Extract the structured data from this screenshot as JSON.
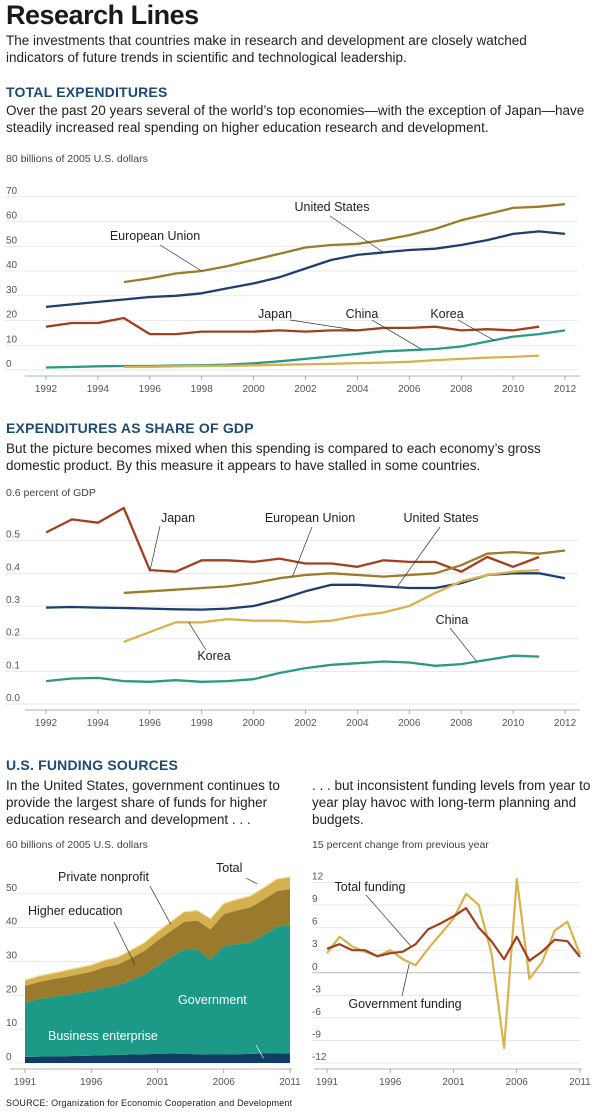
{
  "page": {
    "title": "Research Lines",
    "intro": "The investments that countries make in research and development are closely watched indicators of future trends in scientific and technological leadership.",
    "source": "SOURCE: Organization for Economic Cooperation and Development"
  },
  "sections": {
    "total": {
      "head": "TOTAL EXPENDITURES",
      "text": "Over the past 20 years several of the world’s top economies—with the exception of Japan—have steadily increased real spending on higher education research and development.",
      "unit": "80 billions of 2005 U.S. dollars"
    },
    "gdp": {
      "head": "EXPENDITURES AS SHARE OF GDP",
      "text": "But the picture becomes mixed when this spending is compared to each economy’s gross domestic product. By this measure it appears to have stalled in some countries.",
      "unit": "0.6 percent of GDP"
    },
    "us": {
      "head": "U.S. FUNDING SOURCES",
      "text_left": "In the United States, government continues to provide the largest share of funds for higher education research and development . . .",
      "text_right": ". . . but inconsistent funding levels from year to year play havoc with long-term planning and budgets.",
      "unit_left": "60 billions of 2005 U.S. dollars",
      "unit_right": "15 percent change from previous year"
    }
  },
  "colors": {
    "us": "#1d3f6e",
    "eu": "#9c7b2a",
    "japan": "#a0401e",
    "china": "#2a9a86",
    "korea": "#d9b24e",
    "gov": "#1c9a87",
    "business": "#123c63",
    "highered": "#9a7a2c",
    "nonprofit": "#d4b14e",
    "total_funding": "#a0401e",
    "gov_funding": "#d9b24e"
  },
  "chart_data": [
    {
      "id": "total",
      "type": "line",
      "title": "TOTAL EXPENDITURES",
      "ylabel": "billions of 2005 U.S. dollars",
      "xlim": [
        1991.5,
        2012.5
      ],
      "ylim": [
        0,
        80
      ],
      "yticks": [
        0,
        10,
        20,
        30,
        40,
        50,
        60,
        70
      ],
      "xticks": [
        1992,
        1994,
        1996,
        1998,
        2000,
        2002,
        2004,
        2006,
        2008,
        2010,
        2012
      ],
      "series": [
        {
          "name": "United States",
          "key": "us",
          "x": [
            1992,
            1993,
            1994,
            1995,
            1996,
            1997,
            1998,
            1999,
            2000,
            2001,
            2002,
            2003,
            2004,
            2005,
            2006,
            2007,
            2008,
            2009,
            2010,
            2011,
            2012
          ],
          "values": [
            25.5,
            26.5,
            27.5,
            28.5,
            29.5,
            30,
            31,
            33,
            35,
            37.5,
            41,
            44.5,
            46.5,
            47.5,
            48.5,
            49,
            50.5,
            52.5,
            55,
            56,
            55
          ]
        },
        {
          "name": "European Union",
          "key": "eu",
          "x": [
            1995,
            1996,
            1997,
            1998,
            1999,
            2000,
            2001,
            2002,
            2003,
            2004,
            2005,
            2006,
            2007,
            2008,
            2009,
            2010,
            2011,
            2012
          ],
          "values": [
            35.5,
            37,
            39,
            40,
            42,
            44.5,
            47,
            49.5,
            50.5,
            51,
            52.5,
            54.5,
            57,
            60.5,
            63,
            65.5,
            66,
            67
          ]
        },
        {
          "name": "Japan",
          "key": "japan",
          "x": [
            1992,
            1993,
            1994,
            1995,
            1996,
            1997,
            1998,
            1999,
            2000,
            2001,
            2002,
            2003,
            2004,
            2005,
            2006,
            2007,
            2008,
            2009,
            2010,
            2011
          ],
          "values": [
            17.5,
            19,
            19,
            21,
            14.5,
            14.5,
            15.5,
            15.5,
            15.5,
            16,
            15.5,
            16,
            16,
            17,
            17,
            17.5,
            16,
            16.5,
            16,
            17.5
          ]
        },
        {
          "name": "China",
          "key": "china",
          "x": [
            1992,
            1993,
            1994,
            1995,
            1996,
            1997,
            1998,
            1999,
            2000,
            2001,
            2002,
            2003,
            2004,
            2005,
            2006,
            2007,
            2008,
            2009,
            2010,
            2011,
            2012
          ],
          "values": [
            1,
            1.2,
            1.5,
            1.6,
            1.6,
            1.8,
            1.9,
            2.2,
            2.7,
            3.5,
            4.5,
            5.5,
            6.5,
            7.5,
            8,
            8.5,
            9.5,
            11.5,
            13.5,
            14.5,
            16
          ]
        },
        {
          "name": "Korea",
          "key": "korea",
          "x": [
            1995,
            1996,
            1997,
            1998,
            1999,
            2000,
            2001,
            2002,
            2003,
            2004,
            2005,
            2006,
            2007,
            2008,
            2009,
            2010,
            2011
          ],
          "values": [
            1.2,
            1.3,
            1.5,
            1.6,
            1.7,
            1.9,
            2.1,
            2.3,
            2.5,
            2.8,
            3,
            3.3,
            4,
            4.5,
            5,
            5.3,
            5.8
          ]
        }
      ],
      "annotations": [
        {
          "text": "United States",
          "x": 2005,
          "y": 58
        },
        {
          "text": "European Union",
          "x": 1997,
          "y": 49
        },
        {
          "text": "Japan",
          "x": 2003,
          "y": 20
        },
        {
          "text": "China",
          "x": 2006,
          "y": 20
        },
        {
          "text": "Korea",
          "x": 2009,
          "y": 20
        }
      ]
    },
    {
      "id": "gdp",
      "type": "line",
      "title": "EXPENDITURES AS SHARE OF GDP",
      "ylabel": "percent of GDP",
      "xlim": [
        1991.5,
        2012.5
      ],
      "ylim": [
        0,
        0.6
      ],
      "yticks": [
        0,
        0.1,
        0.2,
        0.3,
        0.4,
        0.5
      ],
      "xticks": [
        1992,
        1994,
        1996,
        1998,
        2000,
        2002,
        2004,
        2006,
        2008,
        2010,
        2012
      ],
      "series": [
        {
          "name": "Japan",
          "key": "japan",
          "x": [
            1992,
            1993,
            1994,
            1995,
            1996,
            1997,
            1998,
            1999,
            2000,
            2001,
            2002,
            2003,
            2004,
            2005,
            2006,
            2007,
            2008,
            2009,
            2010,
            2011
          ],
          "values": [
            0.525,
            0.565,
            0.555,
            0.6,
            0.41,
            0.405,
            0.44,
            0.44,
            0.435,
            0.445,
            0.43,
            0.43,
            0.42,
            0.44,
            0.435,
            0.435,
            0.405,
            0.45,
            0.42,
            0.45
          ]
        },
        {
          "name": "European Union",
          "key": "eu",
          "x": [
            1995,
            1996,
            1997,
            1998,
            1999,
            2000,
            2001,
            2002,
            2003,
            2004,
            2005,
            2006,
            2007,
            2008,
            2009,
            2010,
            2011,
            2012
          ],
          "values": [
            0.34,
            0.345,
            0.35,
            0.355,
            0.36,
            0.37,
            0.385,
            0.395,
            0.4,
            0.395,
            0.39,
            0.395,
            0.4,
            0.425,
            0.46,
            0.465,
            0.46,
            0.47
          ]
        },
        {
          "name": "United States",
          "key": "us",
          "x": [
            1992,
            1993,
            1994,
            1995,
            1996,
            1997,
            1998,
            1999,
            2000,
            2001,
            2002,
            2003,
            2004,
            2005,
            2006,
            2007,
            2008,
            2009,
            2010,
            2011,
            2012
          ],
          "values": [
            0.295,
            0.297,
            0.295,
            0.294,
            0.292,
            0.29,
            0.289,
            0.292,
            0.3,
            0.32,
            0.345,
            0.365,
            0.365,
            0.36,
            0.355,
            0.355,
            0.37,
            0.395,
            0.4,
            0.4,
            0.385
          ]
        },
        {
          "name": "Korea",
          "key": "korea",
          "x": [
            1995,
            1996,
            1997,
            1998,
            1999,
            2000,
            2001,
            2002,
            2003,
            2004,
            2005,
            2006,
            2007,
            2008,
            2009,
            2010,
            2011
          ],
          "values": [
            0.19,
            0.22,
            0.25,
            0.25,
            0.26,
            0.255,
            0.255,
            0.25,
            0.255,
            0.27,
            0.28,
            0.3,
            0.34,
            0.375,
            0.395,
            0.405,
            0.41
          ]
        },
        {
          "name": "China",
          "key": "china",
          "x": [
            1992,
            1993,
            1994,
            1995,
            1996,
            1997,
            1998,
            1999,
            2000,
            2001,
            2002,
            2003,
            2004,
            2005,
            2006,
            2007,
            2008,
            2009,
            2010,
            2011
          ],
          "values": [
            0.07,
            0.078,
            0.08,
            0.07,
            0.068,
            0.073,
            0.068,
            0.07,
            0.076,
            0.095,
            0.11,
            0.12,
            0.125,
            0.13,
            0.127,
            0.117,
            0.122,
            0.135,
            0.148,
            0.145
          ]
        }
      ],
      "annotations": [
        {
          "text": "Japan",
          "x": 1997.5,
          "y": 0.54
        },
        {
          "text": "European Union",
          "x": 2002.5,
          "y": 0.54
        },
        {
          "text": "United States",
          "x": 2007.8,
          "y": 0.54
        },
        {
          "text": "China",
          "x": 2007.4,
          "y": 0.24
        },
        {
          "text": "Korea",
          "x": 1998,
          "y": 0.12
        }
      ]
    },
    {
      "id": "funding",
      "type": "area",
      "stacked": true,
      "title": "U.S. FUNDING SOURCES",
      "ylabel": "billions of 2005 U.S. dollars",
      "xlim": [
        1991,
        2011
      ],
      "ylim": [
        0,
        60
      ],
      "yticks": [
        0,
        10,
        20,
        30,
        40,
        50
      ],
      "xticks": [
        1991,
        1996,
        2001,
        2006,
        2011
      ],
      "x": [
        1991,
        1992,
        1993,
        1994,
        1995,
        1996,
        1997,
        1998,
        1999,
        2000,
        2001,
        2002,
        2003,
        2004,
        2005,
        2006,
        2007,
        2008,
        2009,
        2010,
        2011
      ],
      "series": [
        {
          "name": "Business enterprise",
          "key": "business",
          "values": [
            1.8,
            1.9,
            2,
            2,
            2.1,
            2.2,
            2.3,
            2.4,
            2.5,
            2.6,
            2.7,
            2.8,
            2.7,
            2.6,
            2.5,
            2.5,
            2.6,
            2.7,
            2.8,
            2.8,
            2.9
          ]
        },
        {
          "name": "Government",
          "key": "gov",
          "values": [
            16,
            17,
            17.5,
            18,
            18.5,
            19,
            20,
            20.5,
            22,
            23.5,
            26,
            28.5,
            31,
            31,
            28,
            32,
            32.5,
            33,
            35,
            37.5,
            38
          ]
        },
        {
          "name": "Higher education",
          "key": "highered",
          "values": [
            5,
            5,
            5.2,
            5.4,
            5.6,
            5.8,
            6,
            6.2,
            6.5,
            7,
            7.5,
            7.7,
            8,
            8.5,
            9,
            9.5,
            10,
            10.3,
            10.5,
            10.5,
            10.5
          ]
        },
        {
          "name": "Private nonprofit",
          "key": "nonprofit",
          "values": [
            1.7,
            1.8,
            1.8,
            1.9,
            2,
            2,
            2.1,
            2.2,
            2.4,
            2.5,
            2.6,
            2.8,
            3,
            3,
            3.2,
            3.2,
            3.3,
            3.4,
            3.5,
            3.6,
            3.6
          ]
        }
      ],
      "labels": [
        "Total",
        "Private nonprofit",
        "Higher education",
        "Government",
        "Business enterprise"
      ]
    },
    {
      "id": "change",
      "type": "line",
      "title": "percent change from previous year",
      "xlim": [
        1991,
        2011
      ],
      "ylim": [
        -12,
        15
      ],
      "yticks": [
        -12,
        -9,
        -6,
        -3,
        0,
        3,
        6,
        9,
        12
      ],
      "xticks": [
        1991,
        1996,
        2001,
        2006,
        2011
      ],
      "series": [
        {
          "name": "Total funding",
          "key": "total_funding",
          "x": [
            1991,
            1992,
            1993,
            1994,
            1995,
            1996,
            1997,
            1998,
            1999,
            2000,
            2001,
            2002,
            2003,
            2004,
            2005,
            2006,
            2007,
            2008,
            2009,
            2010,
            2011
          ],
          "values": [
            3.2,
            3.8,
            3,
            3,
            2.2,
            2.6,
            2.8,
            3.8,
            5.8,
            6.6,
            7.5,
            8.6,
            6,
            4.2,
            1.8,
            4.8,
            1.6,
            2.8,
            4.4,
            4.2,
            2.1
          ]
        },
        {
          "name": "Government funding",
          "key": "gov_funding",
          "x": [
            1991,
            1992,
            1993,
            1994,
            1995,
            1996,
            1997,
            1998,
            1999,
            2000,
            2001,
            2002,
            2003,
            2004,
            2005,
            2006,
            2007,
            2008,
            2009,
            2010,
            2011
          ],
          "values": [
            2.6,
            4.8,
            3.5,
            2.8,
            2.2,
            3,
            1.8,
            1,
            3.2,
            5.2,
            7.2,
            10.5,
            9,
            2.6,
            -10,
            12.5,
            -0.8,
            1.4,
            5.6,
            6.8,
            2.4
          ]
        }
      ],
      "annotations": [
        {
          "text": "Total funding",
          "x": 1993.8,
          "y": 10
        },
        {
          "text": "Government funding",
          "x": 1998.4,
          "y": -6.3
        }
      ]
    }
  ]
}
